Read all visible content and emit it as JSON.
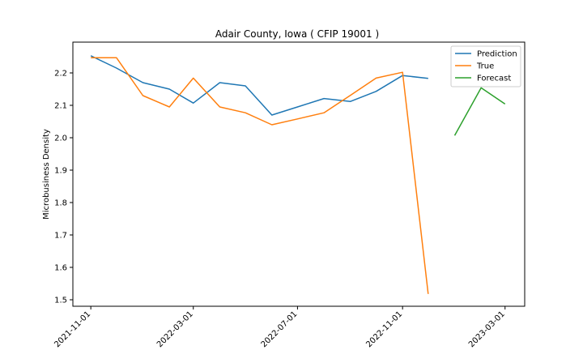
{
  "chart_data": {
    "type": "line",
    "title": "Adair County, Iowa ( CFIP 19001 )",
    "xlabel": "",
    "ylabel": "Microbusiness Density",
    "ylim": [
      1.48,
      2.295
    ],
    "xlim": [
      "2021-10-11",
      "2023-03-24"
    ],
    "x_ticks": [
      "2021-11-01",
      "2022-03-01",
      "2022-07-01",
      "2022-11-01",
      "2023-03-01"
    ],
    "y_ticks": [
      1.5,
      1.6,
      1.7,
      1.8,
      1.9,
      2.0,
      2.1,
      2.2
    ],
    "y_tick_labels": [
      "1.5",
      "1.6",
      "1.7",
      "1.8",
      "1.9",
      "2.0",
      "2.1",
      "2.2"
    ],
    "legend_position": "top-right",
    "grid": false,
    "series": [
      {
        "name": "Prediction",
        "color": "#1f77b4",
        "points": [
          {
            "x": "2021-11-01",
            "y": 2.253
          },
          {
            "x": "2021-12-01",
            "y": 2.215
          },
          {
            "x": "2022-01-01",
            "y": 2.17
          },
          {
            "x": "2022-02-01",
            "y": 2.15
          },
          {
            "x": "2022-03-01",
            "y": 2.107
          },
          {
            "x": "2022-04-01",
            "y": 2.17
          },
          {
            "x": "2022-05-01",
            "y": 2.16
          },
          {
            "x": "2022-06-01",
            "y": 2.07
          },
          {
            "x": "2022-07-01",
            "y": 2.095
          },
          {
            "x": "2022-08-01",
            "y": 2.121
          },
          {
            "x": "2022-09-01",
            "y": 2.112
          },
          {
            "x": "2022-10-01",
            "y": 2.143
          },
          {
            "x": "2022-11-01",
            "y": 2.192
          },
          {
            "x": "2022-12-01",
            "y": 2.183
          }
        ]
      },
      {
        "name": "True",
        "color": "#ff7f0e",
        "points": [
          {
            "x": "2021-11-01",
            "y": 2.247
          },
          {
            "x": "2021-12-01",
            "y": 2.247
          },
          {
            "x": "2022-01-01",
            "y": 2.13
          },
          {
            "x": "2022-02-01",
            "y": 2.095
          },
          {
            "x": "2022-03-01",
            "y": 2.184
          },
          {
            "x": "2022-04-01",
            "y": 2.095
          },
          {
            "x": "2022-05-01",
            "y": 2.077
          },
          {
            "x": "2022-06-01",
            "y": 2.04
          },
          {
            "x": "2022-07-01",
            "y": 2.058
          },
          {
            "x": "2022-08-01",
            "y": 2.077
          },
          {
            "x": "2022-09-01",
            "y": 2.131
          },
          {
            "x": "2022-10-01",
            "y": 2.184
          },
          {
            "x": "2022-11-01",
            "y": 2.202
          },
          {
            "x": "2022-12-01",
            "y": 1.518
          }
        ]
      },
      {
        "name": "Forecast",
        "color": "#2ca02c",
        "points": [
          {
            "x": "2023-01-01",
            "y": 2.007
          },
          {
            "x": "2023-02-01",
            "y": 2.154
          },
          {
            "x": "2023-03-01",
            "y": 2.104
          }
        ]
      }
    ]
  }
}
